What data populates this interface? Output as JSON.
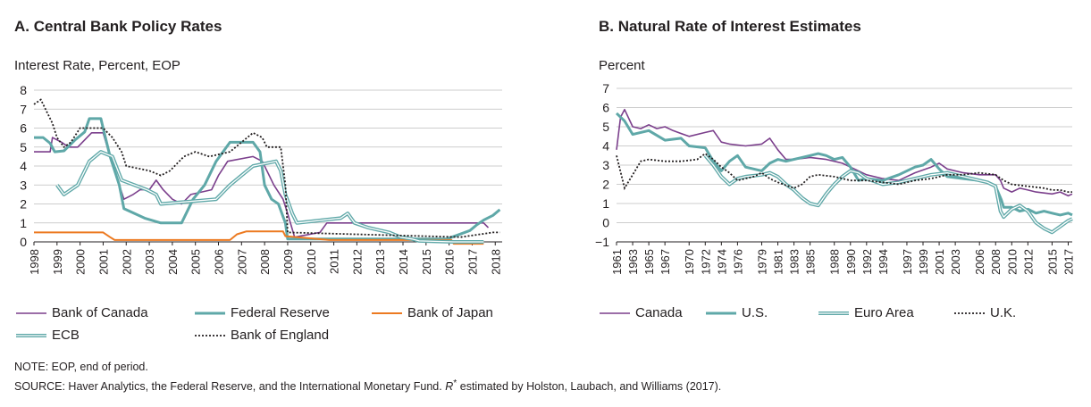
{
  "panels": {
    "a": {
      "title": "A. Central Bank Policy Rates",
      "unit_label": "Interest Rate, Percent, EOP",
      "legend": [
        "Bank of Canada",
        "Federal Reserve",
        "Bank of Japan",
        "ECB",
        "Bank of England"
      ]
    },
    "b": {
      "title": "B. Natural Rate of Interest Estimates",
      "unit_label": "Percent",
      "legend": [
        "Canada",
        "U.S.",
        "Euro Area",
        "U.K."
      ]
    }
  },
  "notes": {
    "note": "NOTE: EOP, end of period.",
    "source_prefix": "SOURCE: Haver Analytics, the Federal Reserve, and the International Monetary Fund. ",
    "source_r": "R",
    "source_star": "*",
    "source_suffix": " estimated by Holston, Laubach, and Williams (2017)."
  },
  "colors": {
    "canada": "#7b3f8c",
    "fed": "#5fa8a8",
    "japan": "#ec7a21",
    "ecb": "#5fa8a8",
    "boe": "#231f20",
    "grid": "#bdbdbd"
  },
  "chart_data": [
    {
      "type": "line",
      "title": "A. Central Bank Policy Rates",
      "ylabel": "Interest Rate, Percent, EOP",
      "xlim": [
        1998,
        2018.3
      ],
      "ylim": [
        0,
        8
      ],
      "x_ticks": [
        1998,
        1999,
        2000,
        2001,
        2002,
        2003,
        2004,
        2005,
        2006,
        2007,
        2008,
        2009,
        2010,
        2011,
        2012,
        2013,
        2014,
        2015,
        2016,
        2017,
        2018
      ],
      "y_ticks": [
        0,
        1,
        2,
        3,
        4,
        5,
        6,
        7,
        8
      ],
      "grid": "horizontal",
      "legend_position": "bottom",
      "series": [
        {
          "name": "Bank of Canada",
          "style": "solid",
          "x": [
            1998,
            1998.7,
            1998.8,
            1999.2,
            1999.5,
            1999.9,
            2000.3,
            2000.5,
            2001.0,
            2001.3,
            2001.7,
            2001.9,
            2002.3,
            2002.6,
            2003.0,
            2003.3,
            2003.6,
            2004.0,
            2004.4,
            2004.8,
            2005.7,
            2006.0,
            2006.4,
            2007.5,
            2007.9,
            2008.2,
            2008.4,
            2008.8,
            2009.0,
            2009.3,
            2010.4,
            2010.7,
            2017.5,
            2017.7
          ],
          "y": [
            4.75,
            4.75,
            5.5,
            5.25,
            5.0,
            5.0,
            5.5,
            5.75,
            5.75,
            4.5,
            3.0,
            2.25,
            2.5,
            2.75,
            2.75,
            3.25,
            2.75,
            2.25,
            2.0,
            2.5,
            2.75,
            3.5,
            4.25,
            4.5,
            4.25,
            3.5,
            3.0,
            2.25,
            1.5,
            0.25,
            0.5,
            1.0,
            1.0,
            0.75
          ]
        },
        {
          "name": "Federal Reserve",
          "style": "solid",
          "x": [
            1998,
            1998.4,
            1998.7,
            1998.9,
            1999.3,
            1999.8,
            2000.2,
            2000.4,
            2000.9,
            2001.0,
            2001.3,
            2001.7,
            2001.9,
            2002.8,
            2003.5,
            2004.4,
            2004.9,
            2005.4,
            2005.9,
            2006.5,
            2007.5,
            2007.8,
            2008.0,
            2008.3,
            2008.6,
            2008.9,
            2009.0,
            2015.9,
            2016.9,
            2017.2,
            2017.5,
            2017.9,
            2018.2
          ],
          "y": [
            5.5,
            5.5,
            5.2,
            4.75,
            4.8,
            5.4,
            5.8,
            6.5,
            6.5,
            6.0,
            4.5,
            3.0,
            1.75,
            1.25,
            1.0,
            1.0,
            2.25,
            3.0,
            4.25,
            5.25,
            5.25,
            4.75,
            3.0,
            2.25,
            2.0,
            1.0,
            0.15,
            0.15,
            0.6,
            0.9,
            1.15,
            1.4,
            1.7
          ]
        },
        {
          "name": "Bank of Japan",
          "style": "solid",
          "x": [
            1998,
            2001.0,
            2001.3,
            2001.5,
            2006.5,
            2006.8,
            2007.2,
            2008.8,
            2008.9,
            2010.8,
            2016.1,
            2016.2,
            2017.5
          ],
          "y": [
            0.5,
            0.5,
            0.25,
            0.1,
            0.1,
            0.4,
            0.55,
            0.55,
            0.3,
            0.1,
            0.1,
            -0.1,
            -0.1
          ]
        },
        {
          "name": "ECB",
          "style": "double",
          "x": [
            1999.0,
            1999.3,
            1999.9,
            2000.4,
            2000.9,
            2001.4,
            2001.8,
            2002.9,
            2003.3,
            2003.5,
            2005.9,
            2006.5,
            2007.0,
            2007.5,
            2008.5,
            2008.7,
            2008.9,
            2009.2,
            2009.4,
            2011.3,
            2011.6,
            2011.9,
            2012.5,
            2013.4,
            2013.9,
            2014.4,
            2014.7,
            2016.2,
            2017.5
          ],
          "y": [
            3.0,
            2.5,
            3.0,
            4.25,
            4.75,
            4.5,
            3.25,
            2.75,
            2.5,
            2.0,
            2.25,
            3.0,
            3.5,
            4.0,
            4.25,
            3.75,
            2.5,
            1.5,
            1.0,
            1.25,
            1.5,
            1.0,
            0.75,
            0.5,
            0.25,
            0.15,
            0.05,
            0.0,
            0.0
          ]
        },
        {
          "name": "Bank of England",
          "style": "dotted",
          "x": [
            1998,
            1998.3,
            1998.8,
            1999.0,
            1999.3,
            1999.6,
            2000.0,
            2001.0,
            2001.4,
            2001.8,
            2002.0,
            2003.0,
            2003.5,
            2003.9,
            2004.5,
            2005.0,
            2005.6,
            2006.5,
            2007.0,
            2007.5,
            2007.9,
            2008.1,
            2008.7,
            2008.9,
            2009.0,
            2016.5,
            2017.9,
            2018.2
          ],
          "y": [
            7.25,
            7.5,
            6.25,
            5.5,
            5.0,
            5.25,
            6.0,
            6.0,
            5.5,
            4.75,
            4.0,
            3.75,
            3.5,
            3.75,
            4.5,
            4.75,
            4.5,
            4.75,
            5.25,
            5.75,
            5.5,
            5.0,
            5.0,
            3.0,
            0.5,
            0.25,
            0.5,
            0.5
          ]
        }
      ]
    },
    {
      "type": "line",
      "title": "B. Natural Rate of Interest Estimates",
      "ylabel": "Percent",
      "xlim": [
        1961,
        2017.5
      ],
      "ylim": [
        -1,
        7
      ],
      "x_ticks": [
        1961,
        1963,
        1965,
        1967,
        1970,
        1972,
        1974,
        1976,
        1979,
        1981,
        1983,
        1985,
        1988,
        1990,
        1992,
        1994,
        1997,
        1999,
        2001,
        2003,
        2006,
        2008,
        2010,
        2012,
        2015,
        2017
      ],
      "y_ticks": [
        -1,
        0,
        1,
        2,
        3,
        4,
        5,
        6,
        7
      ],
      "grid": "horizontal",
      "legend_position": "bottom",
      "series": [
        {
          "name": "Canada",
          "style": "solid",
          "x": [
            1961,
            1961.5,
            1962,
            1963,
            1964,
            1965,
            1966,
            1967,
            1968,
            1970,
            1972,
            1973,
            1974,
            1975,
            1977,
            1979,
            1980,
            1981,
            1982,
            1983,
            1985,
            1987,
            1988,
            1989,
            1990,
            1992,
            1994,
            1996,
            1998,
            2000,
            2001,
            2002,
            2004,
            2006,
            2008,
            2008.6,
            2009,
            2010,
            2011,
            2012,
            2013,
            2015,
            2016,
            2017,
            2017.5
          ],
          "y": [
            3.8,
            5.5,
            5.9,
            5.0,
            4.9,
            5.1,
            4.9,
            5.0,
            4.8,
            4.5,
            4.7,
            4.8,
            4.2,
            4.1,
            4.0,
            4.1,
            4.4,
            3.8,
            3.3,
            3.3,
            3.4,
            3.3,
            3.2,
            3.1,
            2.9,
            2.5,
            2.3,
            2.2,
            2.6,
            2.9,
            3.1,
            2.8,
            2.6,
            2.5,
            2.5,
            2.2,
            1.8,
            1.6,
            1.8,
            1.7,
            1.6,
            1.5,
            1.6,
            1.4,
            1.5
          ]
        },
        {
          "name": "U.S.",
          "style": "solid",
          "x": [
            1961,
            1962,
            1963,
            1965,
            1967,
            1969,
            1970,
            1972,
            1973,
            1974,
            1975,
            1976,
            1977,
            1979,
            1980,
            1981,
            1982,
            1984,
            1985,
            1986,
            1987,
            1988,
            1989,
            1990,
            1991,
            1992,
            1994,
            1996,
            1998,
            1999,
            2000,
            2001,
            2002,
            2004,
            2006,
            2007,
            2008,
            2008.7,
            2009,
            2010,
            2011,
            2012,
            2013,
            2014,
            2015,
            2016,
            2017,
            2017.5
          ],
          "y": [
            5.7,
            5.3,
            4.6,
            4.8,
            4.3,
            4.4,
            4.0,
            3.9,
            3.2,
            2.7,
            3.2,
            3.5,
            2.9,
            2.7,
            3.1,
            3.3,
            3.2,
            3.4,
            3.5,
            3.6,
            3.5,
            3.3,
            3.4,
            2.9,
            2.2,
            2.3,
            2.2,
            2.5,
            2.9,
            3.0,
            3.3,
            2.8,
            2.4,
            2.3,
            2.2,
            2.1,
            1.9,
            1.2,
            0.8,
            0.8,
            0.6,
            0.7,
            0.5,
            0.6,
            0.5,
            0.4,
            0.5,
            0.4
          ]
        },
        {
          "name": "Euro Area",
          "style": "double",
          "x": [
            1972,
            1973,
            1974,
            1975,
            1976,
            1977,
            1979,
            1980,
            1981,
            1982,
            1983,
            1984,
            1985,
            1986,
            1987,
            1988,
            1989,
            1990,
            1991,
            1992,
            1994,
            1996,
            1998,
            2000,
            2002,
            2004,
            2006,
            2007,
            2008,
            2008.6,
            2009,
            2010,
            2011,
            2012,
            2013,
            2014,
            2015,
            2016,
            2017,
            2017.5
          ],
          "y": [
            3.5,
            3.0,
            2.4,
            2.0,
            2.3,
            2.4,
            2.5,
            2.6,
            2.4,
            2.0,
            1.7,
            1.3,
            1.0,
            0.9,
            1.5,
            2.0,
            2.4,
            2.7,
            2.6,
            2.3,
            2.0,
            2.1,
            2.3,
            2.5,
            2.6,
            2.4,
            2.2,
            2.1,
            1.9,
            0.6,
            0.3,
            0.7,
            0.9,
            0.6,
            0.0,
            -0.3,
            -0.5,
            -0.2,
            0.1,
            0.2
          ]
        },
        {
          "name": "U.K.",
          "style": "dotted",
          "x": [
            1961,
            1962,
            1963,
            1964,
            1965,
            1967,
            1969,
            1971,
            1972,
            1973,
            1974,
            1975,
            1976,
            1978,
            1979,
            1980,
            1981,
            1983,
            1984,
            1985,
            1986,
            1988,
            1990,
            1992,
            1994,
            1996,
            1998,
            2000,
            2002,
            2004,
            2006,
            2008,
            2009,
            2010,
            2012,
            2014,
            2015,
            2016,
            2017,
            2017.5
          ],
          "y": [
            3.5,
            1.8,
            2.5,
            3.2,
            3.3,
            3.2,
            3.2,
            3.3,
            3.6,
            3.3,
            2.9,
            2.6,
            2.2,
            2.4,
            2.6,
            2.3,
            2.1,
            1.8,
            2.0,
            2.4,
            2.5,
            2.4,
            2.2,
            2.2,
            2.1,
            2.0,
            2.2,
            2.3,
            2.5,
            2.5,
            2.6,
            2.5,
            2.2,
            2.0,
            1.9,
            1.8,
            1.7,
            1.7,
            1.6,
            1.6
          ]
        }
      ]
    }
  ]
}
